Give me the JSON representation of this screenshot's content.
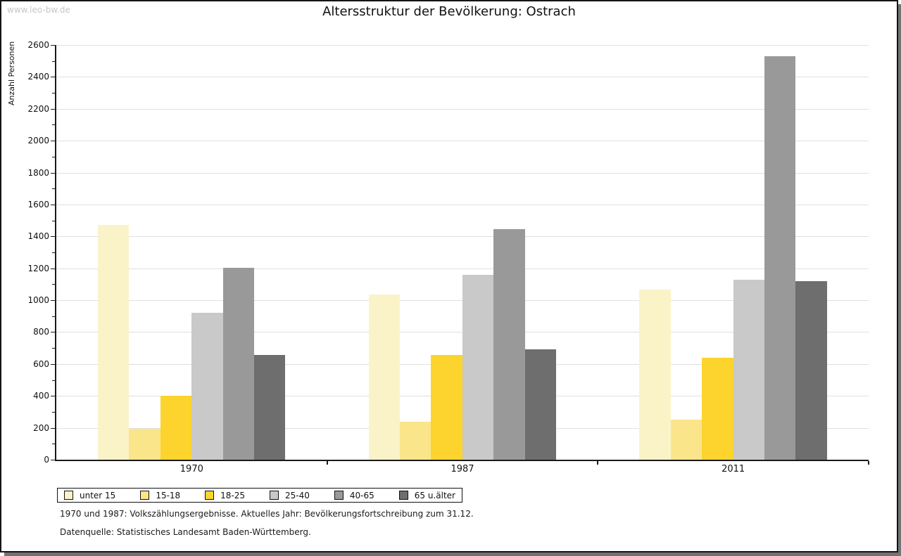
{
  "watermark": "www.leo-bw.de",
  "title": "Altersstruktur der Bevölkerung: Ostrach",
  "chart_data": {
    "type": "bar",
    "title": "Altersstruktur der Bevölkerung: Ostrach",
    "xlabel": "",
    "ylabel": "Anzahl Personen",
    "ylim": [
      0,
      2600
    ],
    "ytick_step": 200,
    "y_minor_tick_step": 100,
    "grid": "horizontal-major",
    "legend_position": "bottom-left",
    "categories": [
      "1970",
      "1987",
      "2011"
    ],
    "series": [
      {
        "name": "unter 15",
        "color": "#FBF3C8",
        "values": [
          1470,
          1035,
          1065
        ]
      },
      {
        "name": "15-18",
        "color": "#FAE58A",
        "values": [
          195,
          240,
          250
        ]
      },
      {
        "name": "18-25",
        "color": "#FCD42D",
        "values": [
          400,
          655,
          640
        ]
      },
      {
        "name": "25-40",
        "color": "#C9C9C9",
        "values": [
          920,
          1160,
          1130
        ]
      },
      {
        "name": "40-65",
        "color": "#999999",
        "values": [
          1205,
          1445,
          2530
        ]
      },
      {
        "name": "65 u.älter",
        "color": "#6E6E6E",
        "values": [
          655,
          690,
          1120
        ]
      }
    ]
  },
  "footnotes": {
    "line1": "1970 und 1987: Volkszählungsergebnisse. Aktuelles Jahr: Bevölkerungsfortschreibung zum 31.12.",
    "line2": "Datenquelle: Statistisches Landesamt Baden-Württemberg."
  }
}
